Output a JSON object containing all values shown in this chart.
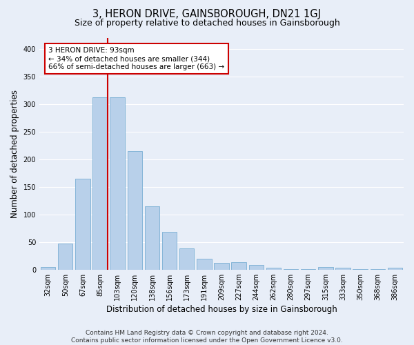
{
  "title": "3, HERON DRIVE, GAINSBOROUGH, DN21 1GJ",
  "subtitle": "Size of property relative to detached houses in Gainsborough",
  "xlabel": "Distribution of detached houses by size in Gainsborough",
  "ylabel": "Number of detached properties",
  "categories": [
    "32sqm",
    "50sqm",
    "67sqm",
    "85sqm",
    "103sqm",
    "120sqm",
    "138sqm",
    "156sqm",
    "173sqm",
    "191sqm",
    "209sqm",
    "227sqm",
    "244sqm",
    "262sqm",
    "280sqm",
    "297sqm",
    "315sqm",
    "333sqm",
    "350sqm",
    "368sqm",
    "386sqm"
  ],
  "values": [
    5,
    47,
    165,
    312,
    312,
    215,
    115,
    68,
    38,
    20,
    12,
    14,
    8,
    3,
    1,
    1,
    5,
    3,
    1,
    1,
    3
  ],
  "bar_color": "#b8d0ea",
  "bar_edge_color": "#7aafd4",
  "vline_color": "#cc0000",
  "vline_x_index": 3.42,
  "annotation_text": "3 HERON DRIVE: 93sqm\n← 34% of detached houses are smaller (344)\n66% of semi-detached houses are larger (663) →",
  "annotation_box_facecolor": "#ffffff",
  "annotation_box_edgecolor": "#cc0000",
  "ylim": [
    0,
    420
  ],
  "yticks": [
    0,
    50,
    100,
    150,
    200,
    250,
    300,
    350,
    400
  ],
  "bg_color": "#e8eef8",
  "fig_bg_color": "#e8eef8",
  "grid_color": "#ffffff",
  "footer_text": "Contains HM Land Registry data © Crown copyright and database right 2024.\nContains public sector information licensed under the Open Government Licence v3.0.",
  "title_fontsize": 10.5,
  "subtitle_fontsize": 9,
  "xlabel_fontsize": 8.5,
  "ylabel_fontsize": 8.5,
  "tick_fontsize": 7,
  "annotation_fontsize": 7.5,
  "footer_fontsize": 6.5
}
